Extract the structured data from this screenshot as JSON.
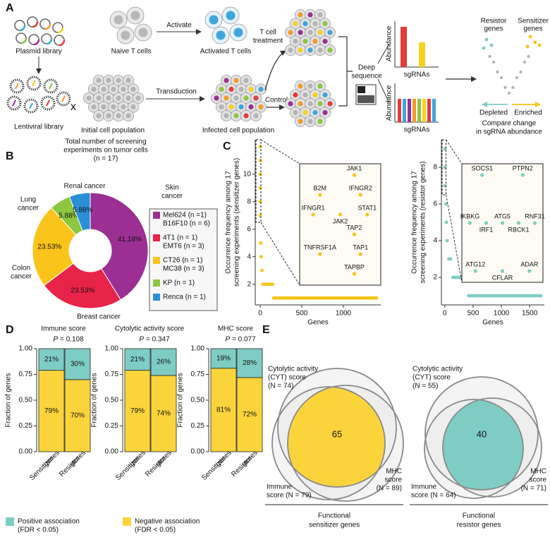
{
  "panel_labels": [
    "A",
    "B",
    "C",
    "D",
    "E"
  ],
  "panel_a": {
    "plasmid_library": "Plasmid library",
    "lentiviral_library": "Lentiviral library",
    "cross": "x",
    "naive_t_cells": "Naive T cells",
    "activate": "Activate",
    "activated_t_cells": "Activated T cells",
    "transduction": "Transduction",
    "initial_population": "Initial cell population",
    "infected_population": "Infected cell population",
    "t_cell_treatment": [
      "T cell",
      "treatment"
    ],
    "control": "Control",
    "deep_sequence": [
      "Deep",
      "sequence"
    ],
    "abundance_top": "Abundance",
    "sgrnas_top": "sgRNAs",
    "abundance_bottom": "Abundance",
    "sgrnas_bottom": "sgRNAs",
    "resistor_genes": [
      "Resistor",
      "genes"
    ],
    "sensitizer_genes": [
      "Sensitizer",
      "genes"
    ],
    "depleted": "Depleted",
    "enriched": "Enriched",
    "compare": [
      "Compare change",
      "in sgRNA abundance"
    ]
  },
  "chart_data": [
    {
      "type": "pie",
      "donut": true,
      "title": [
        "Total number of screening",
        "experiments on tumor cells",
        "(n = 17)"
      ],
      "categories": [
        [
          "Skin",
          "cancer"
        ],
        [
          "Breast cancer"
        ],
        [
          "Colon",
          "cancer"
        ],
        [
          "Lung",
          "cancer"
        ],
        [
          "Renal cancer"
        ]
      ],
      "values": [
        41.18,
        23.53,
        23.53,
        5.88,
        5.88
      ],
      "value_labels": [
        "41.18%",
        "23.53%",
        "23.53%",
        "5.88%",
        "5.88%"
      ],
      "colors": [
        "#9b2f93",
        "#e8234a",
        "#fbc41a",
        "#8dc63f",
        "#2b8fd6"
      ],
      "legend": [
        [
          "Mel624 (n =1)",
          "B16F10 (n = 6)"
        ],
        [
          "4T1 (n = 1)",
          "EMT6 (n = 3)"
        ],
        [
          "CT26 (n = 1)",
          "MC38 (n = 3)"
        ],
        [
          "KP (n = 1)"
        ],
        [
          "Renca (n = 1)"
        ]
      ]
    },
    {
      "type": "scatter",
      "ylabel": [
        "Occurrence frequency among 17",
        "screening experiments (sensitizer genes)"
      ],
      "xlabel": "Genes",
      "color": "#f5c518",
      "xlim": [
        -60,
        1450
      ],
      "xticks": [
        0,
        500,
        1000
      ],
      "ylim": [
        0.5,
        12.5
      ],
      "yticks": [
        2,
        4,
        6,
        8,
        10
      ],
      "points": {
        "x": [
          0,
          0,
          0,
          0,
          0,
          0,
          6,
          12,
          22
        ],
        "y": [
          12,
          11,
          10,
          9,
          8,
          7,
          5,
          4,
          3
        ]
      },
      "runs": [
        {
          "y": 2,
          "x": [
            30,
            150
          ]
        },
        {
          "y": 1,
          "x": [
            160,
            1400
          ]
        }
      ],
      "inset": {
        "genes": [
          "JAK1",
          "B2M",
          "IFNGR2",
          "IFNGR1",
          "JAK2",
          "STAT1",
          "TAP2",
          "TNFRSF1A",
          "TAP1",
          "TAPBP"
        ],
        "values": [
          12,
          11,
          11,
          10,
          10,
          10,
          9,
          8,
          8,
          7
        ]
      }
    },
    {
      "type": "scatter",
      "ylabel": [
        "Occurrence frequency among 17",
        "screening experiments (resistor genes)"
      ],
      "xlabel": "Genes",
      "color": "#7ecdc4",
      "xlim": [
        -60,
        1760
      ],
      "xticks": [
        0,
        500,
        1000,
        1500
      ],
      "ylim": [
        0.5,
        9.5
      ],
      "yticks": [
        2,
        4,
        6,
        8
      ],
      "points": {
        "x": [
          0,
          0,
          0,
          20,
          28,
          40,
          70,
          100
        ],
        "y": [
          9,
          8,
          7,
          6,
          5,
          4,
          3,
          3
        ]
      },
      "runs": [
        {
          "y": 2,
          "x": [
            140,
            400
          ]
        },
        {
          "y": 1,
          "x": [
            420,
            1700
          ]
        }
      ],
      "inset": {
        "genes": [
          "SOCS1",
          "PTPN2",
          "IKBKG",
          "IRF1",
          "ATG5",
          "RBCK1",
          "RNF31",
          "ATG12",
          "CFLAR",
          "ADAR"
        ],
        "values": [
          9,
          9,
          8,
          8,
          8,
          8,
          8,
          7,
          7,
          7
        ]
      }
    },
    {
      "type": "stacked_bar",
      "title": "Immune score",
      "p_label": "P",
      "p_text": "= 0.108",
      "ylabel": "Fraction of genes",
      "ylim": [
        0,
        1
      ],
      "yticks": [
        {
          "value": 0,
          "label": "0.00"
        },
        {
          "value": 0.25,
          "label": "0.25"
        },
        {
          "value": 0.5,
          "label": "0.50"
        },
        {
          "value": 0.75,
          "label": "0.75"
        },
        {
          "value": 1,
          "label": "1.00"
        }
      ],
      "categories": [
        [
          "Sensitizer",
          "genes"
        ],
        [
          "Resistor",
          "genes"
        ]
      ],
      "series": [
        {
          "color": "#fbd43c",
          "values": [
            0.79,
            0.7
          ],
          "value_labels": [
            "79%",
            "70%"
          ]
        },
        {
          "color": "#7ecdc4",
          "values": [
            0.21,
            0.3
          ],
          "value_labels": [
            "21%",
            "30%"
          ]
        }
      ]
    },
    {
      "type": "stacked_bar",
      "title": "Cytolytic activity score",
      "p_label": "P",
      "p_text": "= 0.347",
      "ylabel": "Fraction of genes",
      "ylim": [
        0,
        1
      ],
      "yticks": [
        {
          "value": 0,
          "label": "0.00"
        },
        {
          "value": 0.25,
          "label": "0.25"
        },
        {
          "value": 0.5,
          "label": "0.50"
        },
        {
          "value": 0.75,
          "label": "0.75"
        },
        {
          "value": 1,
          "label": "1.00"
        }
      ],
      "categories": [
        [
          "Sensitizer",
          "genes"
        ],
        [
          "Resistor",
          "genes"
        ]
      ],
      "series": [
        {
          "color": "#fbd43c",
          "values": [
            0.79,
            0.74
          ],
          "value_labels": [
            "79%",
            "74%"
          ]
        },
        {
          "color": "#7ecdc4",
          "values": [
            0.21,
            0.26
          ],
          "value_labels": [
            "21%",
            "26%"
          ]
        }
      ]
    },
    {
      "type": "stacked_bar",
      "title": "MHC score",
      "p_label": "P",
      "p_text": "= 0.077",
      "ylabel": "Fraction of genes",
      "ylim": [
        0,
        1
      ],
      "yticks": [
        {
          "value": 0,
          "label": "0.00"
        },
        {
          "value": 0.25,
          "label": "0.25"
        },
        {
          "value": 0.5,
          "label": "0.50"
        },
        {
          "value": 0.75,
          "label": "0.75"
        },
        {
          "value": 1,
          "label": "1.00"
        }
      ],
      "categories": [
        [
          "Sensitizer",
          "genes"
        ],
        [
          "Resistor",
          "genes"
        ]
      ],
      "series": [
        {
          "color": "#fbd43c",
          "values": [
            0.81,
            0.72
          ],
          "value_labels": [
            "81%",
            "72%"
          ]
        },
        {
          "color": "#7ecdc4",
          "values": [
            0.19,
            0.28
          ],
          "value_labels": [
            "19%",
            "28%"
          ]
        }
      ]
    }
  ],
  "legend_d": [
    {
      "label": [
        "Positive association",
        "(FDR < 0.05)"
      ],
      "color": "#7ecdc4"
    },
    {
      "label": [
        "Negative association",
        "(FDR < 0.05)"
      ],
      "color": "#fbd43c"
    }
  ],
  "panel_e": {
    "venns": [
      {
        "top": [
          "Cytolytic activity",
          "(CYT) score",
          "(N = 74)"
        ],
        "center": "65",
        "left": [
          "Immune",
          "score (N = 79)"
        ],
        "right": [
          "MHC",
          "score",
          "(N = 89)"
        ],
        "footer": [
          "Functional",
          "sensitizer genes"
        ],
        "color": "#fbd43c"
      },
      {
        "top": [
          "Cytolytic activity",
          "(CYT) score",
          "(N = 55)"
        ],
        "center": "40",
        "left": [
          "Immune",
          "score (N = 64)"
        ],
        "right": [
          "MHC",
          "score",
          "(N = 71)"
        ],
        "footer": [
          "Functional",
          "resistor genes"
        ],
        "color": "#7ecdc4"
      }
    ]
  }
}
